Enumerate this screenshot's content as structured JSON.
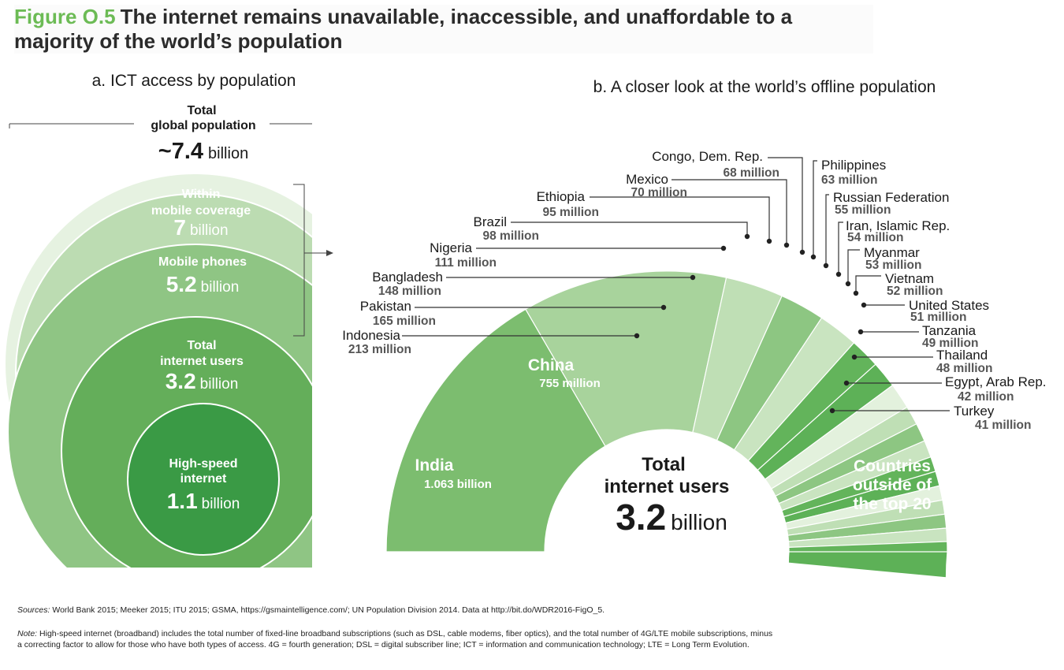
{
  "figure": {
    "label": "Figure O.5",
    "title": "The internet remains unavailable, inaccessible, and unaffordable to a majority of the world’s population"
  },
  "panel_a": {
    "title": "a. ICT access by population",
    "total_label_line1": "Total",
    "total_label_line2": "global population",
    "total_value": "~7.4",
    "total_unit": "billion"
  },
  "panel_b": {
    "title": "b. A closer look at the world’s offline population",
    "center_line1": "Total",
    "center_line2": "internet users",
    "center_value": "3.2",
    "center_unit": "billion",
    "rest_line1": "Countries",
    "rest_line2": "outside of",
    "rest_line3": "the top 20"
  },
  "chart_data": [
    {
      "type": "nested-circles",
      "title": "a. ICT access by population",
      "unit": "billion",
      "categories": [
        "Total global population",
        "Within mobile coverage",
        "Mobile phones",
        "Total internet users",
        "High-speed internet"
      ],
      "values": [
        7.4,
        7,
        5.2,
        3.2,
        1.1
      ],
      "labels": [
        {
          "line1": "Within",
          "line2": "mobile coverage",
          "value": "7",
          "unit": "billion"
        },
        {
          "line1": "Mobile phones",
          "line2": "",
          "value": "5.2",
          "unit": "billion"
        },
        {
          "line1": "Total",
          "line2": "internet users",
          "value": "3.2",
          "unit": "billion"
        },
        {
          "line1": "High-speed",
          "line2": "internet",
          "value": "1.1",
          "unit": "billion"
        }
      ],
      "colors": [
        "#e6f2e1",
        "#bcdcb2",
        "#8fc584",
        "#64ae5a",
        "#3a9a45"
      ]
    },
    {
      "type": "semi-donut",
      "title": "b. A closer look at the world’s offline population",
      "unit": "million",
      "series": [
        {
          "values": [
            1063,
            755,
            213,
            165,
            148,
            111,
            98,
            95,
            70,
            68,
            63,
            55,
            54,
            53,
            52,
            51,
            49,
            48,
            42,
            41
          ]
        }
      ],
      "categories": [
        "India",
        "China",
        "Indonesia",
        "Pakistan",
        "Bangladesh",
        "Nigeria",
        "Brazil",
        "Ethiopia",
        "Mexico",
        "Congo, Dem. Rep.",
        "Philippines",
        "Russian Federation",
        "Iran, Islamic Rep.",
        "Myanmar",
        "Vietnam",
        "United States",
        "Tanzania",
        "Thailand",
        "Egypt, Arab Rep.",
        "Turkey"
      ],
      "value_labels": [
        "1.063 billion",
        "755 million",
        "213 million",
        "165 million",
        "148 million",
        "111 million",
        "98 million",
        "95 million",
        "70 million",
        "68 million",
        "63 million",
        "55 million",
        "54 million",
        "53 million",
        "52 million",
        "51 million",
        "49 million",
        "48 million",
        "42 million",
        "41 million"
      ],
      "colors": [
        "#7cbd6f",
        "#a8d39c",
        "#5db157",
        "#e3f1dd",
        "#bfdfb5",
        "#8dc682",
        "#c9e4c0",
        "#63b45b"
      ]
    }
  ],
  "footer": {
    "sources_label": "Sources:",
    "sources_text": " World Bank 2015; Meeker 2015; ITU 2015; GSMA, https://gsmaintelligence.com/; UN Population Division 2014. Data at http://bit.do/WDR2016-FigO_5.",
    "note_label": "Note:",
    "note_text": " High-speed internet (broadband) includes the total number of fixed-line broadband subscriptions (such as DSL, cable modems, fiber optics), and the total number of 4G/LTE mobile subscriptions, minus a correcting factor to allow for those who have both types of access. 4G = fourth generation; DSL = digital subscriber line; ICT = information and communication technology; LTE = Long Term Evolution."
  }
}
